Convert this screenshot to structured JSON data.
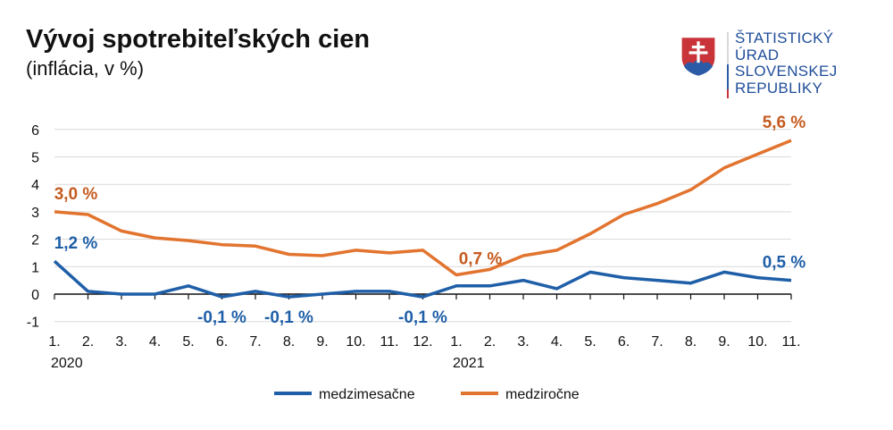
{
  "header": {
    "title": "Vývoj spotrebiteľských cien",
    "subtitle": "(inflácia, v %)"
  },
  "logo": {
    "lines": [
      "ŠTATISTICKÝ",
      "ÚRAD",
      "SLOVENSKEJ",
      "REPUBLIKY"
    ]
  },
  "chart_data": {
    "type": "line",
    "title": "Vývoj spotrebiteľských cien",
    "subtitle": "(inflácia, v %)",
    "xlabel": "",
    "ylabel": "",
    "ylim": [
      -1,
      6
    ],
    "yticks": [
      "-1",
      "0",
      "1",
      "2",
      "3",
      "4",
      "5",
      "6"
    ],
    "grid": true,
    "legend_position": "bottom-center",
    "x": [
      "1.",
      "2.",
      "3.",
      "4.",
      "5.",
      "6.",
      "7.",
      "8.",
      "9.",
      "10.",
      "11.",
      "12.",
      "1.",
      "2.",
      "3.",
      "4.",
      "5.",
      "6.",
      "7.",
      "8.",
      "9.",
      "10.",
      "11."
    ],
    "year_labels": [
      {
        "index": 0,
        "text": "2020"
      },
      {
        "index": 12,
        "text": "2021"
      }
    ],
    "series": [
      {
        "name": "medzimesačne",
        "color": "#1f5fa8",
        "values": [
          1.2,
          0.1,
          0.0,
          0.0,
          0.3,
          -0.1,
          0.1,
          -0.1,
          0.0,
          0.1,
          0.1,
          -0.1,
          0.3,
          0.3,
          0.5,
          0.2,
          0.8,
          0.6,
          0.5,
          0.4,
          0.8,
          0.6,
          0.5
        ]
      },
      {
        "name": "medziročne",
        "color": "#e2742f",
        "values": [
          3.0,
          2.9,
          2.3,
          2.05,
          1.95,
          1.8,
          1.75,
          1.45,
          1.4,
          1.6,
          1.5,
          1.6,
          0.7,
          0.9,
          1.4,
          1.6,
          2.2,
          2.9,
          3.3,
          3.8,
          4.6,
          5.1,
          5.6
        ]
      }
    ],
    "annotations": [
      {
        "series": 1,
        "index": 0,
        "text": "3,0 %",
        "color": "#c55a1e",
        "pos": "above"
      },
      {
        "series": 0,
        "index": 0,
        "text": "1,2 %",
        "color": "#1f5fa8",
        "pos": "above"
      },
      {
        "series": 0,
        "index": 5,
        "text": "-0,1 %",
        "color": "#1f5fa8",
        "pos": "below"
      },
      {
        "series": 0,
        "index": 7,
        "text": "-0,1 %",
        "color": "#1f5fa8",
        "pos": "below"
      },
      {
        "series": 0,
        "index": 11,
        "text": "-0,1 %",
        "color": "#1f5fa8",
        "pos": "below"
      },
      {
        "series": 1,
        "index": 12,
        "text": "0,7 %",
        "color": "#c55a1e",
        "pos": "above-right"
      },
      {
        "series": 1,
        "index": 22,
        "text": "5,6 %",
        "color": "#c55a1e",
        "pos": "above"
      },
      {
        "series": 0,
        "index": 22,
        "text": "0,5 %",
        "color": "#1f5fa8",
        "pos": "above"
      }
    ]
  }
}
